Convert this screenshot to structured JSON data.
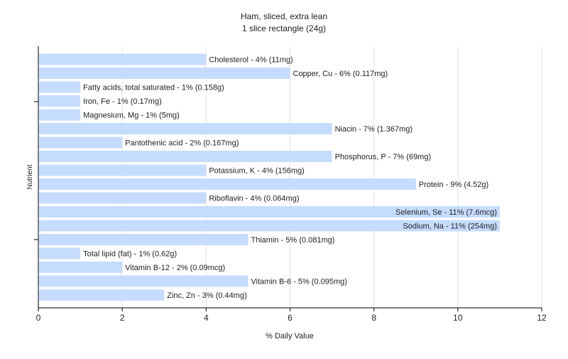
{
  "chart_data": {
    "type": "bar",
    "orientation": "horizontal",
    "title": "Ham, sliced, extra lean",
    "subtitle": "1 slice rectangle (24g)",
    "xlabel": "% Daily Value",
    "ylabel": "Nutrient",
    "xlim": [
      0,
      12
    ],
    "xticks": [
      0,
      2,
      4,
      6,
      8,
      10,
      12
    ],
    "grid": true,
    "legend": "none",
    "bar_color": "#c6dcff",
    "categories": [
      "Cholesterol",
      "Copper, Cu",
      "Fatty acids, total saturated",
      "Iron, Fe",
      "Magnesium, Mg",
      "Niacin",
      "Pantothenic acid",
      "Phosphorus, P",
      "Potassium, K",
      "Protein",
      "Riboflavin",
      "Selenium, Se",
      "Sodium, Na",
      "Thiamin",
      "Total lipid (fat)",
      "Vitamin B-12",
      "Vitamin B-6",
      "Zinc, Zn"
    ],
    "values": [
      4,
      6,
      1,
      1,
      1,
      7,
      2,
      7,
      4,
      9,
      4,
      11,
      11,
      5,
      1,
      2,
      5,
      3
    ],
    "labels": [
      "Cholesterol - 4% (11mg)",
      "Copper, Cu - 6% (0.117mg)",
      "Fatty acids, total saturated - 1% (0.158g)",
      "Iron, Fe - 1% (0.17mg)",
      "Magnesium, Mg - 1% (5mg)",
      "Niacin - 7% (1.367mg)",
      "Pantothenic acid - 2% (0.167mg)",
      "Phosphorus, P - 7% (69mg)",
      "Potassium, K - 4% (156mg)",
      "Protein - 9% (4.52g)",
      "Riboflavin - 4% (0.064mg)",
      "Selenium, Se - 11% (7.6mcg)",
      "Sodium, Na - 11% (254mg)",
      "Thiamin - 5% (0.081mg)",
      "Total lipid (fat) - 1% (0.62g)",
      "Vitamin B-12 - 2% (0.09mcg)",
      "Vitamin B-6 - 5% (0.095mg)",
      "Zinc, Zn - 3% (0.44mg)"
    ]
  }
}
